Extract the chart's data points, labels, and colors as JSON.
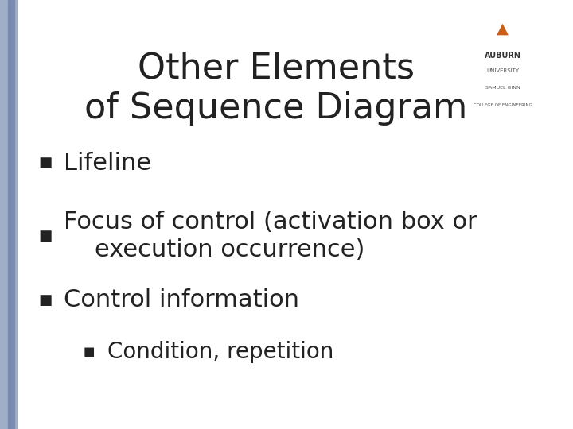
{
  "title_line1": "Other Elements",
  "title_line2": "of Sequence Diagram",
  "title_fontsize": 32,
  "title_color": "#222222",
  "background_color": "#ffffff",
  "bullet_items": [
    {
      "level": 0,
      "text": "Lifeline"
    },
    {
      "level": 0,
      "text": "Focus of control (activation box or\n    execution occurrence)"
    },
    {
      "level": 0,
      "text": "Control information"
    },
    {
      "level": 1,
      "text": "Condition, repetition"
    }
  ],
  "bullet_fontsize": 22,
  "sub_bullet_fontsize": 20,
  "bullet_color": "#222222",
  "bullet_symbol": "■",
  "left_bar_color1": "#7a8bb0",
  "left_bar_color2": "#a0afc8",
  "left_bar_width": 0.012,
  "logo_colors": {
    "tower": "#c8601a",
    "text": "#555555"
  }
}
